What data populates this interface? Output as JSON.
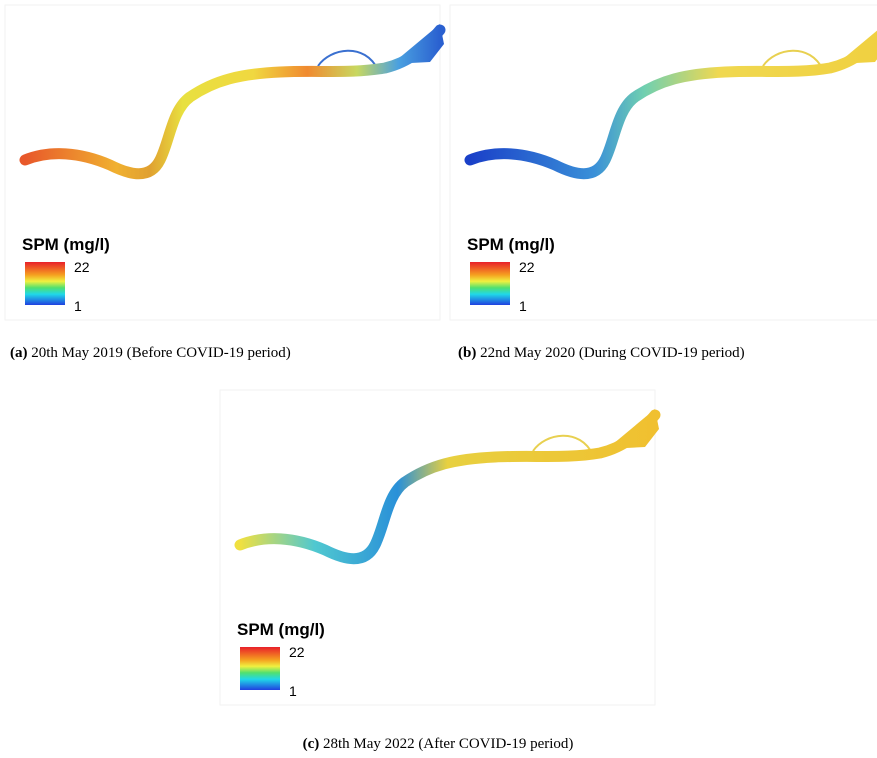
{
  "panels": [
    {
      "label": "(a)",
      "caption": "20th May 2019 (Before COVID-19 period)",
      "legend": {
        "title": "SPM (mg/l)",
        "max": 22,
        "min": 1
      }
    },
    {
      "label": "(b)",
      "caption": "22nd May 2020 (During COVID-19 period)",
      "legend": {
        "title": "SPM (mg/l)",
        "max": 22,
        "min": 1
      }
    },
    {
      "label": "(c)",
      "caption": "28th May 2022 (After COVID-19 period)",
      "legend": {
        "title": "SPM (mg/l)",
        "max": 22,
        "min": 1
      }
    }
  ]
}
